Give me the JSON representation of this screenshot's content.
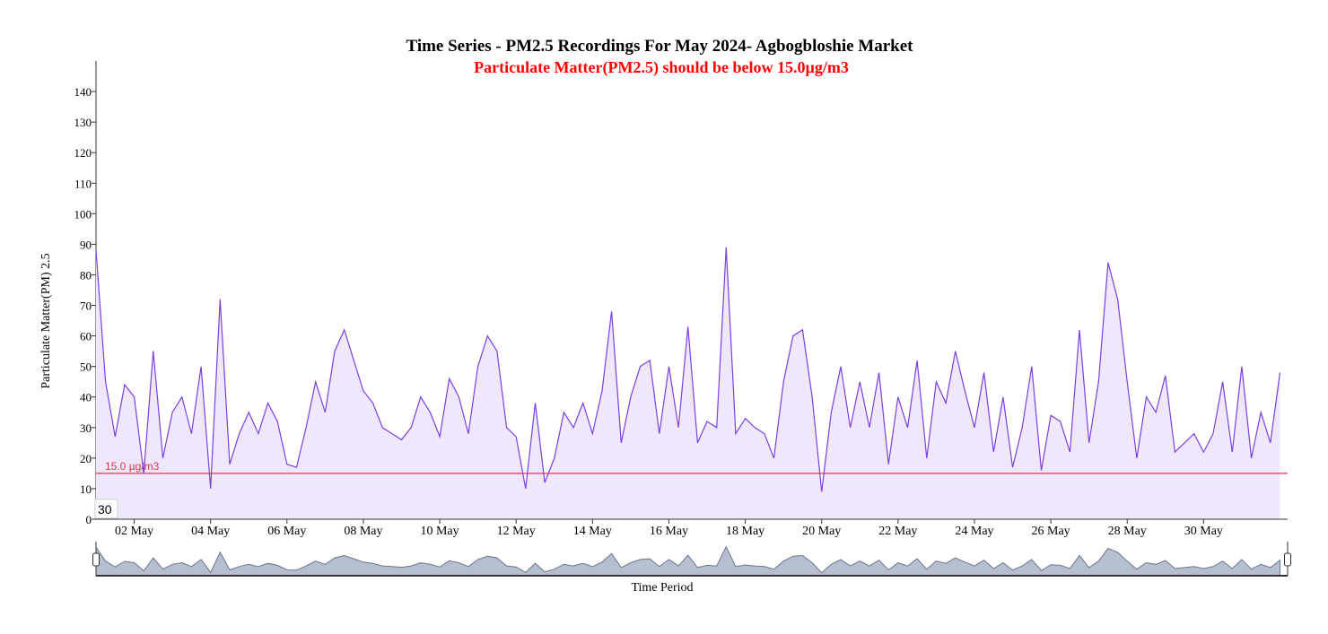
{
  "chart_data": {
    "type": "line",
    "title": "Time Series - PM2.5 Recordings For May 2024- Agbogbloshie Market",
    "subtitle": "Particulate Matter(PM2.5) should be below 15.0µg/m3",
    "y_label": "Particulate Matter(PM) 2.5",
    "x_label": "Time Period",
    "badge": "30",
    "threshold": {
      "value": 15,
      "label": "15.0 µg/m3",
      "color": "#e8334a"
    },
    "xlim": [
      1,
      32.2
    ],
    "xticks": [
      {
        "value": 2,
        "label": "02 May"
      },
      {
        "value": 4,
        "label": "04 May"
      },
      {
        "value": 6,
        "label": "06 May"
      },
      {
        "value": 8,
        "label": "08 May"
      },
      {
        "value": 10,
        "label": "10 May"
      },
      {
        "value": 12,
        "label": "12 May"
      },
      {
        "value": 14,
        "label": "14 May"
      },
      {
        "value": 16,
        "label": "16 May"
      },
      {
        "value": 18,
        "label": "18 May"
      },
      {
        "value": 20,
        "label": "20 May"
      },
      {
        "value": 22,
        "label": "22 May"
      },
      {
        "value": 24,
        "label": "24 May"
      },
      {
        "value": 26,
        "label": "26 May"
      },
      {
        "value": 28,
        "label": "28 May"
      },
      {
        "value": 30,
        "label": "30 May"
      }
    ],
    "ylim": [
      0,
      150
    ],
    "yticks": [
      0,
      10,
      20,
      30,
      40,
      50,
      60,
      70,
      80,
      90,
      100,
      110,
      120,
      130,
      140
    ],
    "x": [
      1,
      1.25,
      1.5,
      1.75,
      2,
      2.25,
      2.5,
      2.75,
      3,
      3.25,
      3.5,
      3.75,
      4,
      4.25,
      4.5,
      4.75,
      5,
      5.25,
      5.5,
      5.75,
      6,
      6.25,
      6.5,
      6.75,
      7,
      7.25,
      7.5,
      7.75,
      8,
      8.25,
      8.5,
      8.75,
      9,
      9.25,
      9.5,
      9.75,
      10,
      10.25,
      10.5,
      10.75,
      11,
      11.25,
      11.5,
      11.75,
      12,
      12.25,
      12.5,
      12.75,
      13,
      13.25,
      13.5,
      13.75,
      14,
      14.25,
      14.5,
      14.75,
      15,
      15.25,
      15.5,
      15.75,
      16,
      16.25,
      16.5,
      16.75,
      17,
      17.25,
      17.5,
      17.75,
      18,
      18.25,
      18.5,
      18.75,
      19,
      19.25,
      19.5,
      19.75,
      20,
      20.25,
      20.5,
      20.75,
      21,
      21.25,
      21.5,
      21.75,
      22,
      22.25,
      22.5,
      22.75,
      23,
      23.25,
      23.5,
      23.75,
      24,
      24.25,
      24.5,
      24.75,
      25,
      25.25,
      25.5,
      25.75,
      26,
      26.25,
      26.5,
      26.75,
      27,
      27.25,
      27.5,
      27.75,
      28,
      28.25,
      28.5,
      28.75,
      29,
      29.25,
      29.5,
      29.75,
      30,
      30.25,
      30.5,
      30.75,
      31,
      31.25,
      31.5,
      31.75,
      32
    ],
    "series": [
      {
        "name": "PM2.5",
        "color": "#7b3fe4",
        "fill": "#efe8fc",
        "values": [
          88,
          45,
          27,
          44,
          40,
          15,
          55,
          20,
          35,
          40,
          28,
          50,
          10,
          72,
          18,
          28,
          35,
          28,
          38,
          32,
          18,
          17,
          30,
          45,
          35,
          55,
          62,
          52,
          42,
          38,
          30,
          28,
          26,
          30,
          40,
          35,
          27,
          46,
          40,
          28,
          50,
          60,
          55,
          30,
          27,
          10,
          38,
          12,
          20,
          35,
          30,
          38,
          28,
          42,
          68,
          25,
          40,
          50,
          52,
          28,
          50,
          30,
          63,
          25,
          32,
          30,
          89,
          28,
          33,
          30,
          28,
          20,
          45,
          60,
          62,
          40,
          9,
          35,
          50,
          30,
          45,
          30,
          48,
          18,
          40,
          30,
          52,
          20,
          45,
          38,
          55,
          42,
          30,
          48,
          22,
          40,
          17,
          30,
          50,
          16,
          34,
          32,
          22,
          62,
          25,
          45,
          84,
          72,
          45,
          20,
          40,
          35,
          47,
          22,
          25,
          28,
          22,
          28,
          45,
          22,
          50,
          20,
          35,
          25,
          48
        ]
      }
    ]
  }
}
